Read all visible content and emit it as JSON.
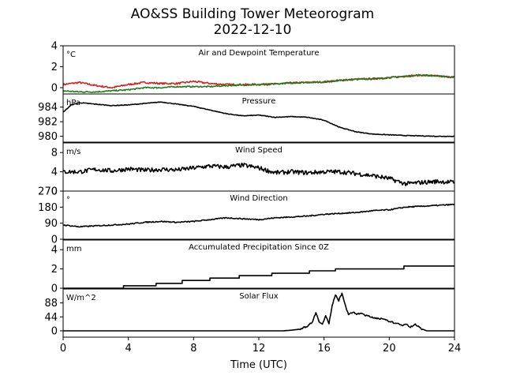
{
  "title": "AO&SS Building Tower Meteorogram",
  "subtitle": "2022-12-10",
  "xlabel": "Time (UTC)",
  "chart_data": [
    {
      "type": "line",
      "title": "Air and Dewpoint Temperature",
      "ylabel": "°C",
      "xlim": [
        0,
        24
      ],
      "ylim": [
        -0.6,
        4
      ],
      "yticks": [
        0,
        2,
        4
      ],
      "series": [
        {
          "color": "#d62020",
          "x": [
            0,
            1,
            2,
            3,
            4,
            5,
            6,
            7,
            8,
            9,
            10,
            11,
            12,
            13,
            14,
            15,
            16,
            17,
            18,
            19,
            20,
            21,
            22,
            23,
            24
          ],
          "y": [
            0.3,
            0.5,
            0.2,
            0.0,
            0.3,
            0.5,
            0.4,
            0.4,
            0.6,
            0.4,
            0.3,
            0.3,
            0.3,
            0.35,
            0.45,
            0.5,
            0.55,
            0.7,
            0.8,
            0.85,
            0.95,
            1.1,
            1.2,
            1.1,
            1.0
          ]
        },
        {
          "color": "#1a7f1a",
          "x": [
            0,
            1,
            2,
            3,
            4,
            5,
            6,
            7,
            8,
            9,
            10,
            11,
            12,
            13,
            14,
            15,
            16,
            17,
            18,
            19,
            20,
            21,
            22,
            23,
            24
          ],
          "y": [
            -0.3,
            -0.4,
            -0.4,
            -0.3,
            -0.2,
            0.0,
            0.0,
            0.1,
            0.1,
            0.1,
            0.2,
            0.25,
            0.3,
            0.35,
            0.45,
            0.5,
            0.55,
            0.7,
            0.8,
            0.85,
            0.95,
            1.1,
            1.2,
            1.1,
            1.0
          ]
        }
      ]
    },
    {
      "type": "line",
      "title": "Pressure",
      "ylabel": "hPa",
      "xlim": [
        0,
        24
      ],
      "ylim": [
        979.2,
        985.8
      ],
      "yticks": [
        980,
        982,
        984
      ],
      "series": [
        {
          "color": "#000000",
          "x": [
            0,
            0.5,
            1,
            2,
            3,
            4,
            5,
            6,
            7,
            8,
            9,
            10,
            11,
            12,
            13,
            14,
            15,
            16,
            17,
            18,
            19,
            20,
            21,
            22,
            23,
            24
          ],
          "y": [
            983.3,
            984.3,
            984.6,
            984.4,
            984.2,
            984.3,
            984.5,
            984.7,
            984.4,
            984.1,
            983.6,
            983.1,
            982.8,
            982.9,
            982.6,
            982.7,
            982.6,
            982.2,
            981.2,
            980.6,
            980.3,
            980.2,
            980.1,
            980.05,
            980.0,
            980.0
          ]
        }
      ]
    },
    {
      "type": "line",
      "title": "Wind Speed",
      "ylabel": "m/s",
      "xlim": [
        0,
        24
      ],
      "ylim": [
        0,
        10
      ],
      "yticks": [
        0,
        4,
        8
      ],
      "series": [
        {
          "color": "#000000",
          "x": [
            0,
            1,
            2,
            3,
            4,
            5,
            6,
            7,
            8,
            9,
            10,
            11,
            12,
            13,
            14,
            15,
            16,
            17,
            18,
            19,
            20,
            21,
            22,
            23,
            24
          ],
          "y": [
            4.0,
            4.0,
            4.5,
            4.2,
            4.6,
            4.3,
            4.5,
            4.4,
            4.8,
            5.2,
            5.0,
            5.4,
            4.8,
            3.8,
            4.0,
            3.8,
            4.0,
            4.0,
            3.6,
            3.2,
            2.6,
            1.5,
            1.8,
            2.0,
            1.8
          ]
        }
      ]
    },
    {
      "type": "line",
      "title": "Wind Direction",
      "ylabel": "°",
      "xlim": [
        0,
        24
      ],
      "ylim": [
        0,
        270
      ],
      "yticks": [
        0,
        90,
        180,
        270
      ],
      "series": [
        {
          "color": "#000000",
          "x": [
            0,
            1,
            2,
            3,
            4,
            5,
            6,
            7,
            8,
            9,
            10,
            11,
            12,
            13,
            14,
            15,
            16,
            17,
            18,
            19,
            20,
            21,
            22,
            23,
            24
          ],
          "y": [
            80,
            70,
            75,
            80,
            85,
            95,
            100,
            95,
            100,
            110,
            120,
            115,
            110,
            120,
            125,
            130,
            140,
            145,
            150,
            160,
            165,
            180,
            185,
            190,
            195
          ]
        }
      ]
    },
    {
      "type": "line",
      "title": "Accumulated Precipitation Since 0Z",
      "ylabel": "mm",
      "xlim": [
        0,
        24
      ],
      "ylim": [
        0,
        5
      ],
      "yticks": [
        0,
        2,
        4
      ],
      "series": [
        {
          "color": "#000000",
          "step": true,
          "x": [
            0,
            3.7,
            5.7,
            7.3,
            9.0,
            10.8,
            12.8,
            15.1,
            16.7,
            20.9,
            24
          ],
          "y": [
            0,
            0.25,
            0.5,
            0.8,
            1.05,
            1.3,
            1.55,
            1.8,
            2.0,
            2.3,
            2.3
          ]
        }
      ]
    },
    {
      "type": "line",
      "title": "Solar Flux",
      "ylabel": "W/m^2",
      "xlim": [
        0,
        24
      ],
      "ylim": [
        -20,
        132
      ],
      "yticks": [
        0,
        44,
        88
      ],
      "series": [
        {
          "color": "#000000",
          "x": [
            0,
            13.5,
            14.0,
            14.5,
            15.0,
            15.3,
            15.5,
            15.7,
            15.9,
            16.1,
            16.3,
            16.5,
            16.7,
            16.9,
            17.1,
            17.3,
            17.5,
            17.8,
            18.0,
            18.3,
            18.6,
            19.0,
            19.5,
            20.0,
            20.5,
            20.8,
            21.0,
            21.3,
            21.6,
            22.0,
            22.3,
            24
          ],
          "y": [
            0,
            0,
            2,
            5,
            15,
            30,
            58,
            30,
            20,
            48,
            22,
            80,
            115,
            95,
            120,
            82,
            50,
            60,
            52,
            55,
            48,
            42,
            38,
            30,
            22,
            18,
            22,
            12,
            20,
            6,
            0,
            0
          ]
        }
      ]
    }
  ]
}
